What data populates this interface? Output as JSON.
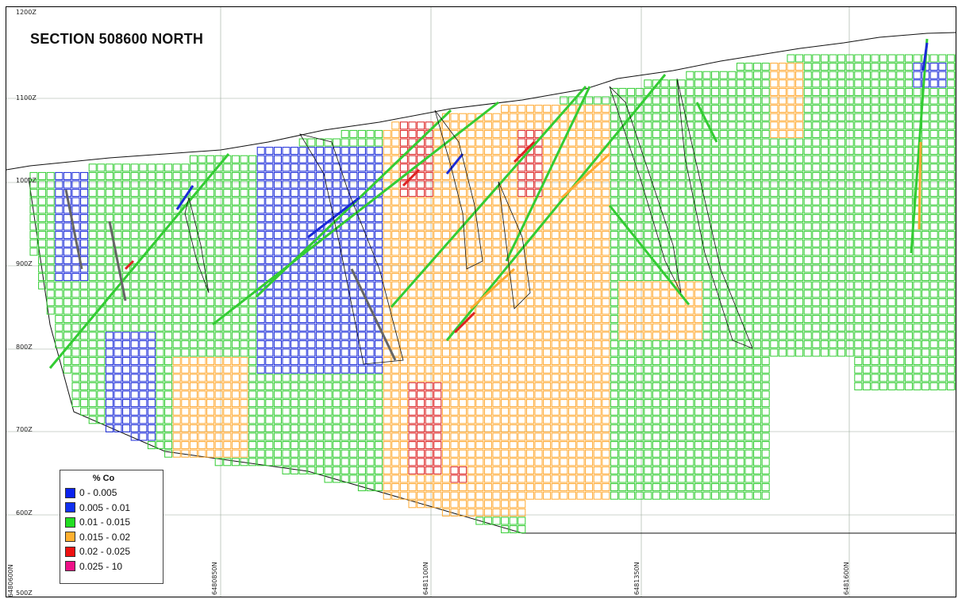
{
  "section": {
    "title": "SECTION 508600 NORTH"
  },
  "elevations": [
    "1200Z",
    "1100Z",
    "1000Z",
    "900Z",
    "800Z",
    "700Z",
    "600Z",
    "500Z"
  ],
  "northings": [
    "6480600N",
    "6480850N",
    "6481100N",
    "6481350N",
    "6481600N"
  ],
  "legend": {
    "title": "% Co",
    "items": [
      {
        "label": "0  -  0.005",
        "color": "#0b22ee"
      },
      {
        "label": "0.005  -  0.01",
        "color": "#1030f0"
      },
      {
        "label": "0.01  -  0.015",
        "color": "#22dd22"
      },
      {
        "label": "0.015  -  0.02",
        "color": "#ffb030"
      },
      {
        "label": "0.02  -  0.025",
        "color": "#ee1111"
      },
      {
        "label": "0.025  -  10",
        "color": "#ee1188"
      }
    ]
  },
  "colors": {
    "blue": "#1a2ad8",
    "green": "#33cc33",
    "orange": "#ffaa33",
    "red": "#dd2222",
    "magenta": "#e0207a",
    "gray": "#666666",
    "grid": "#9aa89a"
  }
}
